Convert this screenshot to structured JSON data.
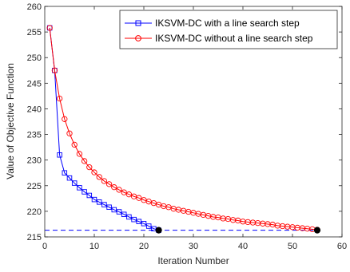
{
  "chart_data": {
    "type": "line",
    "xlabel": "Iteration Number",
    "ylabel": "Value of Objective Function",
    "xlim": [
      0,
      60
    ],
    "ylim": [
      215,
      260
    ],
    "xticks": [
      0,
      10,
      20,
      30,
      40,
      50,
      60
    ],
    "yticks": [
      215,
      220,
      225,
      230,
      235,
      240,
      245,
      250,
      255,
      260
    ],
    "grid": false,
    "legend_position": "top-right",
    "series": [
      {
        "name": "IKSVM-DC with a line search step",
        "color": "#0000ff",
        "marker": "square",
        "x": [
          1,
          2,
          3,
          4,
          5,
          6,
          7,
          8,
          9,
          10,
          11,
          12,
          13,
          14,
          15,
          16,
          17,
          18,
          19,
          20,
          21,
          22,
          23
        ],
        "y": [
          255.8,
          247.5,
          231.0,
          227.5,
          226.5,
          225.5,
          224.6,
          223.8,
          223.1,
          222.3,
          221.8,
          221.3,
          220.8,
          220.3,
          219.9,
          219.4,
          218.9,
          218.4,
          218.0,
          217.6,
          217.1,
          216.6,
          216.3
        ]
      },
      {
        "name": "IKSVM-DC without a line search step",
        "color": "#ff0000",
        "marker": "circle",
        "x": [
          1,
          2,
          3,
          4,
          5,
          6,
          7,
          8,
          9,
          10,
          11,
          12,
          13,
          14,
          15,
          16,
          17,
          18,
          19,
          20,
          21,
          22,
          23,
          24,
          25,
          26,
          27,
          28,
          29,
          30,
          31,
          32,
          33,
          34,
          35,
          36,
          37,
          38,
          39,
          40,
          41,
          42,
          43,
          44,
          45,
          46,
          47,
          48,
          49,
          50,
          51,
          52,
          53,
          54,
          55
        ],
        "y": [
          255.8,
          247.5,
          242.0,
          238.0,
          235.2,
          233.0,
          231.2,
          229.8,
          228.6,
          227.6,
          226.7,
          225.9,
          225.3,
          224.7,
          224.2,
          223.7,
          223.3,
          222.9,
          222.6,
          222.2,
          221.9,
          221.6,
          221.3,
          221.0,
          220.8,
          220.5,
          220.3,
          220.1,
          219.9,
          219.7,
          219.5,
          219.3,
          219.1,
          218.9,
          218.8,
          218.6,
          218.5,
          218.3,
          218.2,
          218.0,
          217.9,
          217.8,
          217.7,
          217.6,
          217.5,
          217.4,
          217.2,
          217.1,
          217.0,
          216.9,
          216.8,
          216.7,
          216.6,
          216.5,
          216.4
        ]
      }
    ],
    "reference_line": {
      "y": 216.3,
      "x_from": 0,
      "x_to": 55,
      "color": "#0000ff",
      "style": "dashed"
    },
    "endpoints": [
      {
        "x": 23,
        "y": 216.3,
        "color": "#000000"
      },
      {
        "x": 55,
        "y": 216.3,
        "color": "#000000"
      }
    ]
  }
}
